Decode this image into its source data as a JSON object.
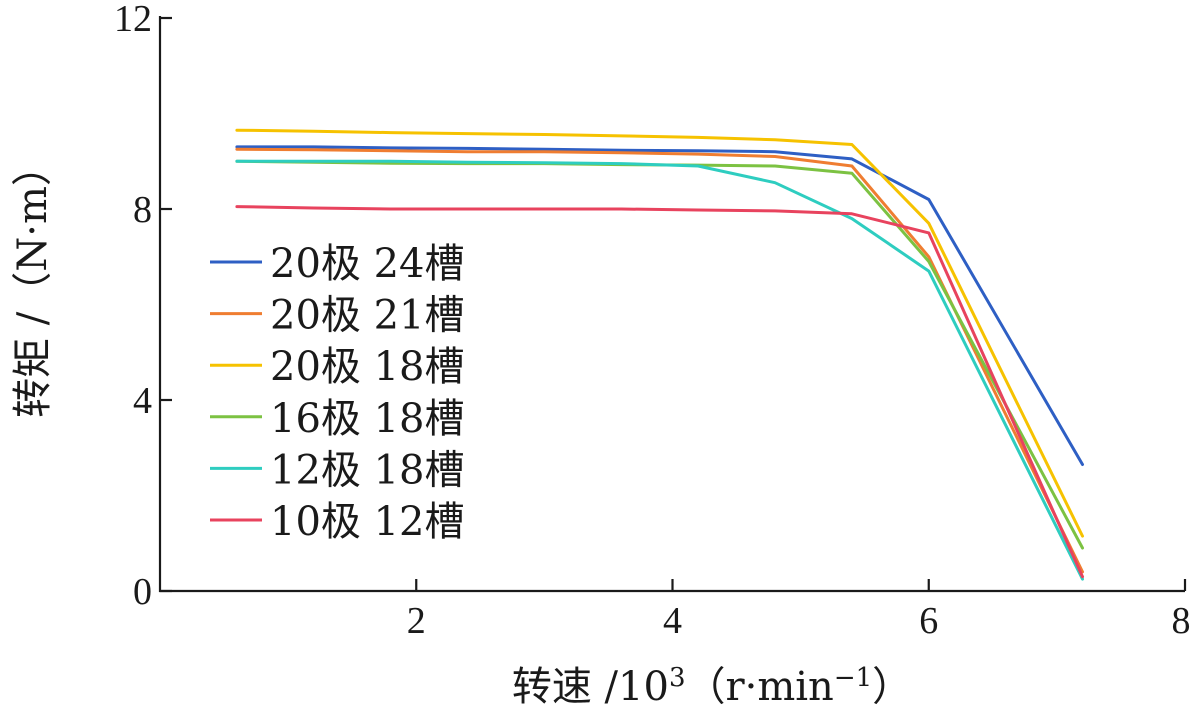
{
  "chart_data": {
    "type": "line",
    "title": "",
    "xlabel": "转速 /10",
    "xlabel_sup": "3",
    "xlabel_unit": "（r·min",
    "xlabel_unit_sup": "−1",
    "xlabel_close": "）",
    "ylabel": "转矩 /（N·m）",
    "xlim": [
      0,
      8
    ],
    "ylim": [
      0,
      12
    ],
    "xticks": [
      2,
      4,
      6,
      8
    ],
    "yticks": [
      0,
      4,
      8,
      12
    ],
    "xtick_labels": [
      "2",
      "4",
      "6",
      "8"
    ],
    "ytick_labels": [
      "0",
      "4",
      "8",
      "12"
    ],
    "grid": false,
    "legend_position": "center-left",
    "series": [
      {
        "name": "20极 24槽",
        "color": "#2e5fc4",
        "x": [
          0.6,
          1.2,
          1.8,
          2.4,
          3.0,
          3.6,
          4.2,
          4.8,
          5.4,
          6.0,
          7.2
        ],
        "y": [
          9.3,
          9.3,
          9.28,
          9.27,
          9.25,
          9.23,
          9.22,
          9.2,
          9.05,
          8.2,
          2.65
        ]
      },
      {
        "name": "20极 21槽",
        "color": "#ef7d31",
        "x": [
          0.6,
          1.2,
          1.8,
          2.4,
          3.0,
          3.6,
          4.2,
          4.8,
          5.4,
          6.0,
          7.2
        ],
        "y": [
          9.25,
          9.24,
          9.22,
          9.2,
          9.2,
          9.18,
          9.15,
          9.1,
          8.9,
          7.0,
          0.4
        ]
      },
      {
        "name": "20极 18槽",
        "color": "#f6c200",
        "x": [
          0.6,
          1.2,
          1.8,
          2.4,
          3.0,
          3.6,
          4.2,
          4.8,
          5.4,
          6.0,
          7.2
        ],
        "y": [
          9.65,
          9.63,
          9.6,
          9.58,
          9.56,
          9.53,
          9.5,
          9.45,
          9.35,
          7.7,
          1.15
        ]
      },
      {
        "name": "16极 18槽",
        "color": "#7cc242",
        "x": [
          0.6,
          1.2,
          1.8,
          2.4,
          3.0,
          3.6,
          4.2,
          4.8,
          5.4,
          6.0,
          7.2
        ],
        "y": [
          9.0,
          8.98,
          8.96,
          8.95,
          8.95,
          8.93,
          8.92,
          8.9,
          8.75,
          6.9,
          0.9
        ]
      },
      {
        "name": "12极 18槽",
        "color": "#2ecdc0",
        "x": [
          0.6,
          1.2,
          1.8,
          2.4,
          3.0,
          3.6,
          4.2,
          4.8,
          5.4,
          6.0,
          7.2
        ],
        "y": [
          9.0,
          9.0,
          9.0,
          8.98,
          8.97,
          8.95,
          8.9,
          8.55,
          7.8,
          6.7,
          0.25
        ]
      },
      {
        "name": "10极 12槽",
        "color": "#e8435e",
        "x": [
          0.6,
          1.2,
          1.8,
          2.4,
          3.0,
          3.6,
          4.2,
          4.8,
          5.4,
          6.0,
          7.2
        ],
        "y": [
          8.05,
          8.02,
          8.0,
          8.0,
          8.0,
          8.0,
          7.98,
          7.96,
          7.9,
          7.5,
          0.3
        ]
      }
    ]
  }
}
